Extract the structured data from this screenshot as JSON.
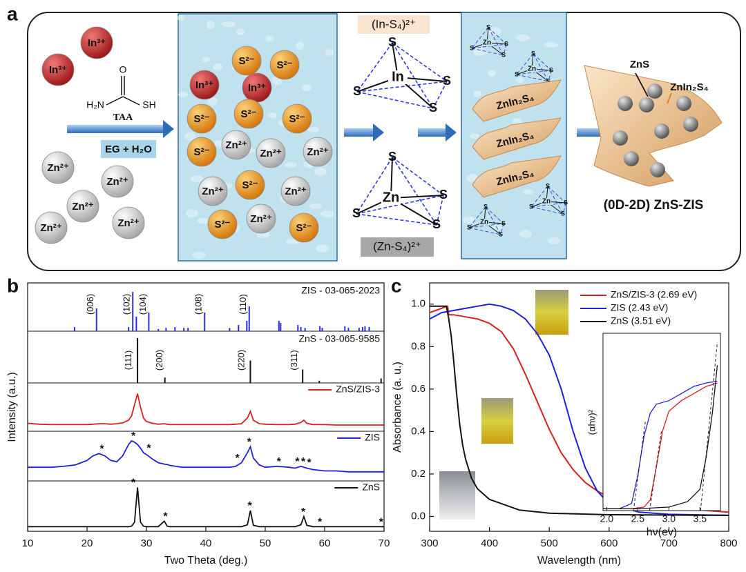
{
  "panel_a": {
    "label": "a",
    "ions_left": [
      "In³⁺",
      "In³⁺",
      "Zn²⁺",
      "Zn²⁺",
      "Zn²⁺",
      "Zn²⁺",
      "Zn²⁺"
    ],
    "taa": {
      "o": "O",
      "h2n": "H₂N",
      "sh": "SH",
      "name": "TAA"
    },
    "solvent": "EG + H₂O",
    "ions_solution": [
      "S²⁻",
      "S²⁻",
      "In³⁺",
      "In³⁺",
      "S²⁻",
      "S²⁻",
      "S²⁻",
      "S²⁻",
      "Zn²⁺",
      "Zn²⁺",
      "Zn²⁺",
      "Zn²⁺",
      "S²⁻",
      "Zn²⁺",
      "S²⁻",
      "Zn²⁺",
      "S²⁻"
    ],
    "in_complex": {
      "title": "(In-S₄)²⁺",
      "center": "In",
      "vertex": "S"
    },
    "zn_complex": {
      "title": "(Zn-S₄)²⁺",
      "center": "Zn",
      "vertex": "S"
    },
    "sheet_label": "ZnIn₂S₄",
    "small_complex": {
      "center": "Zn",
      "vertex": "S"
    },
    "product": {
      "zns": "ZnS",
      "zis": "ZnIn₂S₄",
      "name": "(0D-2D) ZnS-ZIS"
    }
  },
  "chart_data": [
    {
      "type": "line",
      "label": "b",
      "xlabel": "Two Theta (deg.)",
      "ylabel": "Intensity (a.u.)",
      "xlim": [
        10,
        70
      ],
      "xticks": [
        10,
        20,
        30,
        40,
        50,
        60,
        70
      ],
      "references": [
        {
          "name": "ZIS - 03-065-2023",
          "color": "#2a2ae0",
          "x": [
            17.9,
            21.6,
            27.0,
            27.7,
            28.3,
            30.4,
            32.0,
            33.3,
            34.8,
            36.3,
            37.0,
            39.8,
            44.0,
            45.5,
            46.9,
            47.3,
            52.3,
            52.6,
            55.5,
            56.0,
            56.7,
            59.2,
            59.6,
            63.4,
            64.0,
            65.8,
            66.4,
            66.8,
            67.5
          ],
          "values": [
            0.1,
            0.55,
            0.1,
            0.95,
            0.35,
            0.45,
            0.05,
            0.08,
            0.1,
            0.08,
            0.08,
            0.45,
            0.08,
            0.15,
            0.25,
            0.6,
            0.25,
            0.2,
            0.15,
            0.1,
            0.08,
            0.12,
            0.08,
            0.12,
            0.08,
            0.08,
            0.1,
            0.12,
            0.1
          ],
          "peaks": [
            {
              "label": "(006)",
              "x": 21.6
            },
            {
              "label": "(102)",
              "x": 27.7
            },
            {
              "label": "(104)",
              "x": 30.4
            },
            {
              "label": "(108)",
              "x": 39.8
            },
            {
              "label": "(110)",
              "x": 47.3
            }
          ]
        },
        {
          "name": "ZnS - 03-065-9585",
          "color": "#111111",
          "x": [
            28.5,
            33.1,
            47.5,
            56.3,
            59.1,
            69.5
          ],
          "values": [
            1.0,
            0.12,
            0.5,
            0.3,
            0.05,
            0.1
          ],
          "peaks": [
            {
              "label": "(111)",
              "x": 28.0
            },
            {
              "label": "(200)",
              "x": 33.2
            },
            {
              "label": "(220)",
              "x": 47.0
            },
            {
              "label": "(311)",
              "x": 55.9
            }
          ]
        }
      ],
      "x": [
        10,
        12,
        14,
        16,
        18,
        20,
        21,
        22,
        23,
        24,
        25,
        26,
        27,
        27.5,
        28,
        28.5,
        29,
        29.5,
        30,
        31,
        32,
        33,
        33.5,
        34,
        36,
        38,
        40,
        42,
        44,
        45,
        46,
        47,
        47.5,
        48,
        49,
        50,
        52,
        54,
        55,
        56,
        56.5,
        57,
        58,
        60,
        62,
        64,
        66,
        68,
        70
      ],
      "series": [
        {
          "name": "ZnS/ZIS-3",
          "color": "#d42020",
          "values": [
            0.18,
            0.16,
            0.15,
            0.15,
            0.15,
            0.15,
            0.16,
            0.17,
            0.17,
            0.16,
            0.17,
            0.19,
            0.25,
            0.35,
            0.6,
            0.85,
            0.55,
            0.3,
            0.22,
            0.18,
            0.16,
            0.17,
            0.16,
            0.15,
            0.15,
            0.15,
            0.15,
            0.15,
            0.15,
            0.16,
            0.17,
            0.3,
            0.45,
            0.25,
            0.17,
            0.16,
            0.15,
            0.15,
            0.16,
            0.2,
            0.25,
            0.18,
            0.15,
            0.15,
            0.14,
            0.14,
            0.14,
            0.14,
            0.14
          ]
        },
        {
          "name": "ZIS",
          "color": "#1f1fd8",
          "values": [
            0.3,
            0.3,
            0.3,
            0.32,
            0.35,
            0.45,
            0.55,
            0.6,
            0.55,
            0.45,
            0.42,
            0.55,
            0.8,
            0.88,
            0.85,
            0.8,
            0.72,
            0.62,
            0.58,
            0.48,
            0.4,
            0.37,
            0.36,
            0.34,
            0.3,
            0.3,
            0.3,
            0.3,
            0.3,
            0.32,
            0.4,
            0.62,
            0.75,
            0.5,
            0.35,
            0.3,
            0.32,
            0.3,
            0.28,
            0.32,
            0.3,
            0.28,
            0.25,
            0.22,
            0.22,
            0.2,
            0.2,
            0.2,
            0.2
          ],
          "markers": {
            "symbol": "*",
            "x": [
              22.5,
              27.8,
              30.4,
              45.3,
              47.3,
              52.3,
              55.4,
              56.4,
              57.4
            ]
          }
        },
        {
          "name": "ZnS",
          "color": "#111111",
          "values": [
            0.1,
            0.1,
            0.1,
            0.1,
            0.1,
            0.1,
            0.1,
            0.1,
            0.1,
            0.1,
            0.1,
            0.1,
            0.1,
            0.11,
            0.2,
            0.95,
            0.2,
            0.11,
            0.1,
            0.1,
            0.1,
            0.22,
            0.11,
            0.1,
            0.1,
            0.1,
            0.1,
            0.1,
            0.1,
            0.1,
            0.1,
            0.14,
            0.45,
            0.13,
            0.1,
            0.1,
            0.1,
            0.1,
            0.1,
            0.14,
            0.32,
            0.13,
            0.1,
            0.1,
            0.1,
            0.1,
            0.1,
            0.1,
            0.1
          ],
          "markers": {
            "symbol": "*",
            "x": [
              27.8,
              33.2,
              47.4,
              56.4,
              59.2,
              69.5
            ]
          }
        }
      ]
    },
    {
      "type": "line",
      "label": "c",
      "xlabel": "Wavelength (nm)",
      "ylabel": "Absorbance (a. u.)",
      "xlim": [
        300,
        800
      ],
      "xticks": [
        300,
        400,
        500,
        600,
        700,
        800
      ],
      "ylim": [
        -0.07,
        1.1
      ],
      "yticks": [
        {
          "value": 0,
          "label": "0.0"
        },
        0.2,
        0.4,
        0.6,
        0.8,
        {
          "value": 1,
          "label": "1.0"
        }
      ],
      "legend": "upper right",
      "series": [
        {
          "name": "ZnS/ZIS-3 (2.69 eV)",
          "color": "#d42020",
          "x": [
            300,
            310,
            320,
            328,
            330,
            332,
            340,
            360,
            380,
            400,
            420,
            440,
            460,
            480,
            500,
            520,
            540,
            560,
            580,
            600,
            650,
            700,
            750,
            800
          ],
          "values": [
            0.96,
            0.97,
            0.98,
            0.99,
            0.99,
            0.95,
            0.95,
            0.94,
            0.93,
            0.91,
            0.87,
            0.79,
            0.67,
            0.54,
            0.41,
            0.3,
            0.22,
            0.16,
            0.12,
            0.09,
            0.06,
            0.04,
            0.03,
            0.02
          ]
        },
        {
          "name": "ZIS (2.43 eV)",
          "color": "#1f1fd8",
          "x": [
            300,
            320,
            340,
            360,
            380,
            400,
            420,
            440,
            460,
            480,
            500,
            520,
            540,
            560,
            580,
            600,
            650,
            700,
            800
          ],
          "values": [
            0.93,
            0.96,
            0.97,
            0.98,
            0.99,
            1.0,
            0.99,
            0.97,
            0.93,
            0.86,
            0.76,
            0.6,
            0.4,
            0.23,
            0.12,
            0.06,
            0.02,
            0.01,
            0.005
          ]
        },
        {
          "name": "ZnS (3.51 eV)",
          "color": "#111111",
          "x": [
            300,
            320,
            328,
            332,
            336,
            340,
            345,
            350,
            355,
            360,
            370,
            380,
            400,
            450,
            500,
            600,
            800
          ],
          "values": [
            0.99,
            0.99,
            0.99,
            0.93,
            0.85,
            0.74,
            0.58,
            0.44,
            0.34,
            0.27,
            0.18,
            0.13,
            0.08,
            0.03,
            0.015,
            0.008,
            0.005
          ]
        }
      ]
    },
    {
      "type": "line",
      "xlabel": "hν(ev)",
      "ylabel": "(αhν)²",
      "xlim": [
        1.94,
        3.83
      ],
      "xticks": [
        {
          "value": 2,
          "label": "2.0"
        },
        2.5,
        {
          "value": 3,
          "label": "3.0"
        },
        3.5
      ],
      "ylim": [
        0,
        1
      ],
      "series": [
        {
          "color": "#1f1fd8",
          "x": [
            1.94,
            2.2,
            2.4,
            2.5,
            2.6,
            2.7,
            2.8,
            3.0,
            3.2,
            3.4,
            3.6,
            3.78
          ],
          "values": [
            0.01,
            0.01,
            0.04,
            0.2,
            0.42,
            0.55,
            0.6,
            0.62,
            0.66,
            0.7,
            0.72,
            0.73
          ]
        },
        {
          "color": "#d42020",
          "x": [
            1.94,
            2.4,
            2.6,
            2.7,
            2.8,
            2.9,
            3.0,
            3.2,
            3.4,
            3.6,
            3.78
          ],
          "values": [
            0.01,
            0.01,
            0.02,
            0.06,
            0.25,
            0.45,
            0.56,
            0.62,
            0.66,
            0.7,
            0.72
          ]
        },
        {
          "color": "#111111",
          "x": [
            1.94,
            2.5,
            3.0,
            3.3,
            3.5,
            3.6,
            3.7,
            3.78
          ],
          "values": [
            0.01,
            0.01,
            0.02,
            0.05,
            0.12,
            0.3,
            0.55,
            0.82
          ]
        }
      ],
      "tangents": [
        {
          "color": "#222222",
          "x": [
            2.43,
            2.62
          ],
          "values": [
            0,
            0.5
          ]
        },
        {
          "color": "#222222",
          "x": [
            2.69,
            2.88
          ],
          "values": [
            0,
            0.45
          ]
        },
        {
          "color": "#222222",
          "x": [
            3.51,
            3.78
          ],
          "values": [
            0,
            0.95
          ]
        }
      ]
    }
  ]
}
